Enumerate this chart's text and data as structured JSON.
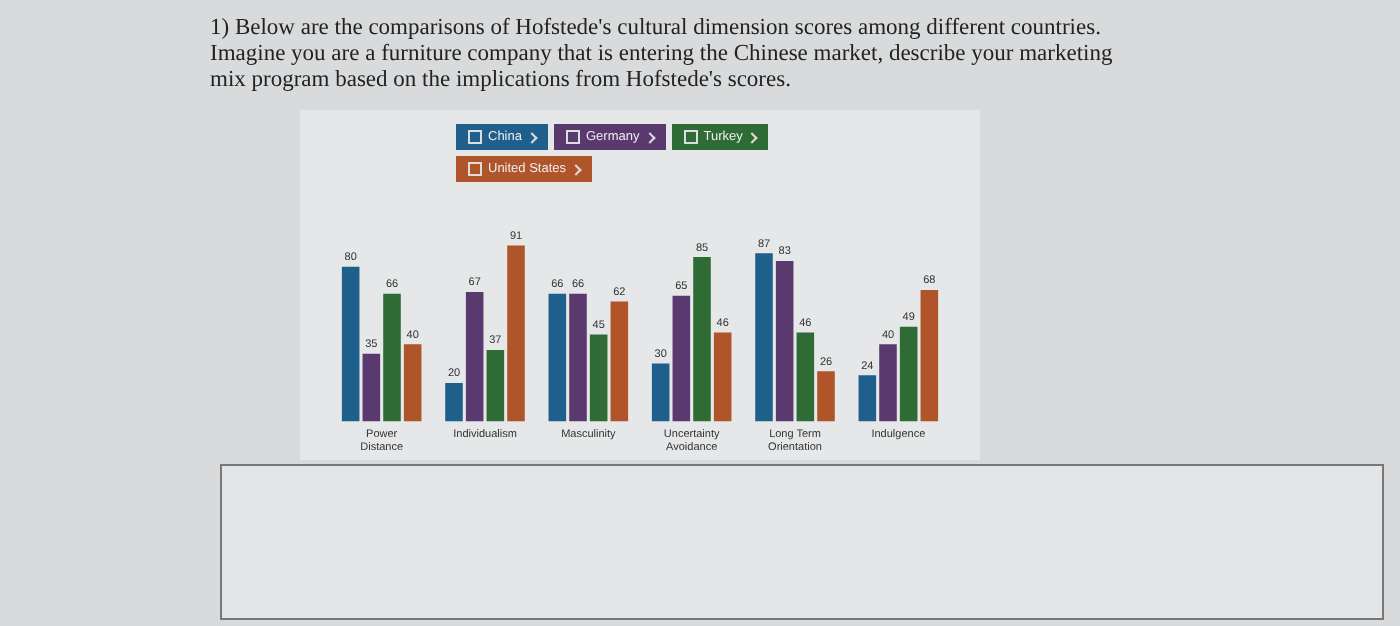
{
  "chart_data": {
    "type": "bar",
    "title": "1) Below are the comparisons of Hofstede's cultural dimension scores among different countries. Imagine you are a furniture company that is entering the Chinese market, describe your marketing mix program based on the implications from Hofstede's scores.",
    "categories": [
      "Power Distance",
      "Individualism",
      "Masculinity",
      "Uncertainty Avoidance",
      "Long Term Orientation",
      "Indulgence"
    ],
    "series": [
      {
        "name": "China",
        "color": "#1f5f8b",
        "values": [
          80,
          20,
          66,
          30,
          87,
          24
        ]
      },
      {
        "name": "Germany",
        "color": "#5a3a6e",
        "values": [
          35,
          67,
          66,
          65,
          83,
          40
        ]
      },
      {
        "name": "Turkey",
        "color": "#2e6b35",
        "values": [
          66,
          37,
          45,
          85,
          46,
          49
        ]
      },
      {
        "name": "United States",
        "color": "#b0552a",
        "values": [
          40,
          91,
          62,
          46,
          26,
          68
        ]
      }
    ],
    "data_labels": true,
    "legend": "top",
    "grid": false,
    "tick_labels": "x"
  }
}
